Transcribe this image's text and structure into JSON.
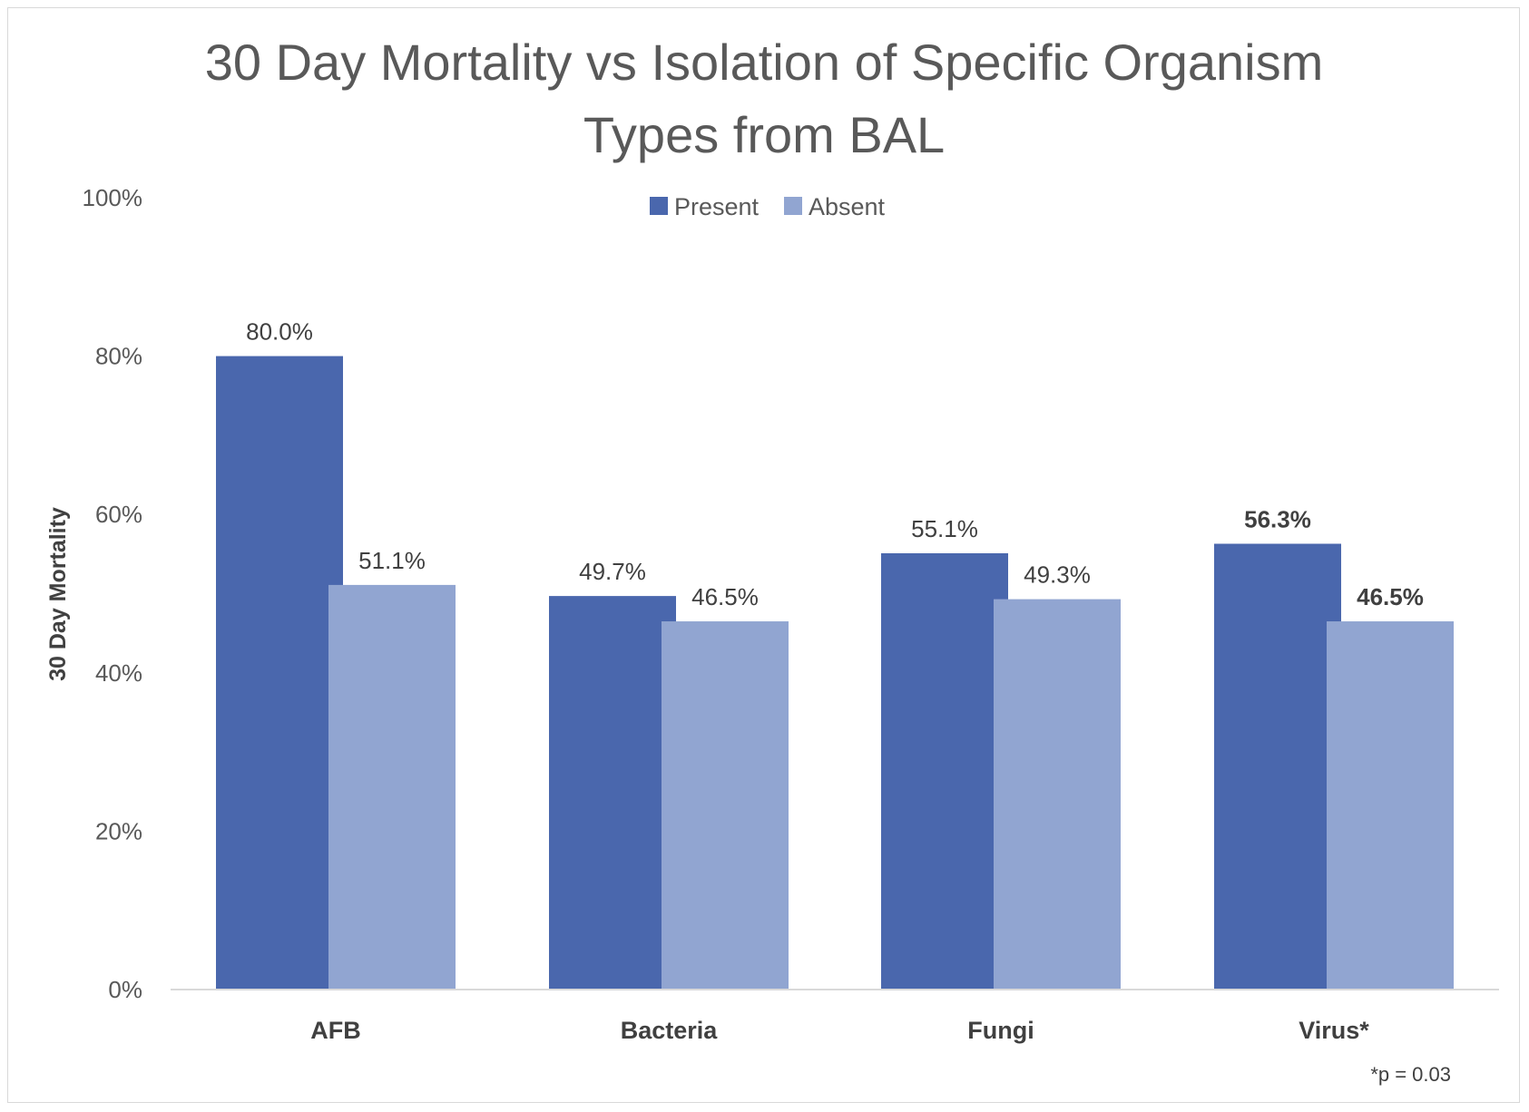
{
  "chart_data": {
    "type": "bar",
    "title_lines": [
      "30 Day Mortality vs Isolation of Specific Organism",
      "Types from BAL"
    ],
    "ylabel": "30 Day Mortality",
    "xlabel": "",
    "categories": [
      "AFB",
      "Bacteria",
      "Fungi",
      "Virus*"
    ],
    "series": [
      {
        "name": "Present",
        "color": "#4a67ad",
        "values": [
          80.0,
          49.7,
          55.1,
          56.3
        ],
        "labels": [
          "80.0%",
          "49.7%",
          "55.1%",
          "56.3%"
        ],
        "bold_labels": [
          false,
          false,
          false,
          true
        ]
      },
      {
        "name": "Absent",
        "color": "#91a5d1",
        "values": [
          51.1,
          46.5,
          49.3,
          46.5
        ],
        "labels": [
          "51.1%",
          "46.5%",
          "49.3%",
          "46.5%"
        ],
        "bold_labels": [
          false,
          false,
          false,
          true
        ]
      }
    ],
    "ylim": [
      0,
      100
    ],
    "yticks": [
      0,
      20,
      40,
      60,
      80,
      100
    ],
    "ytick_labels": [
      "0%",
      "20%",
      "40%",
      "60%",
      "80%",
      "100%"
    ],
    "legend_position": "top",
    "grid": false,
    "footnote": "*p = 0.03"
  }
}
